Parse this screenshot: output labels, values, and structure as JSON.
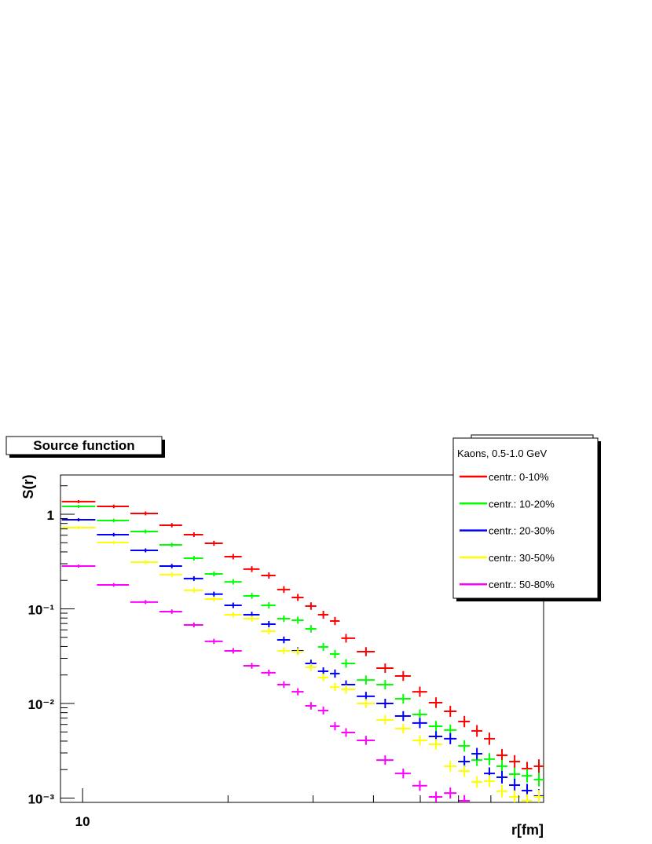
{
  "chart_data": {
    "type": "scatter",
    "title": "Source function",
    "xlabel": "r[fm]",
    "ylabel": "S(r)",
    "legend_title": "Kaons, 0.5-1.0 GeV",
    "legend_position": "top-right",
    "xscale": "log",
    "yscale": "log",
    "xlim": [
      9,
      90
    ],
    "ylim": [
      0.0009,
      2.6
    ],
    "xticks": [
      10
    ],
    "x_minor_ticks": [
      20,
      30,
      40,
      50,
      60,
      70,
      80,
      90
    ],
    "yticks": [
      1,
      {
        "value": 0.1,
        "label": "10⁻¹"
      },
      {
        "value": 0.01,
        "label": "10⁻²"
      },
      {
        "value": 0.001,
        "label": "10⁻³"
      }
    ],
    "y_minor_ticks": [
      0.002,
      0.003,
      0.004,
      0.005,
      0.006,
      0.007,
      0.008,
      0.009,
      0.02,
      0.03,
      0.04,
      0.05,
      0.06,
      0.07,
      0.08,
      0.09,
      0.2,
      0.3,
      0.4,
      0.5,
      0.6,
      0.7,
      0.8,
      0.9,
      2
    ],
    "x": [
      9.81,
      11.6,
      13.5,
      15.3,
      17.0,
      18.7,
      20.5,
      22.4,
      24.3,
      26.1,
      27.9,
      29.7,
      31.5,
      33.3,
      35.1,
      38.6,
      42.3,
      46.1,
      49.9,
      53.9,
      57.7,
      61.7,
      65.5,
      69.5,
      73.8,
      78.4,
      83.2,
      88.0
    ],
    "series": [
      {
        "name": "centr.: 0-10%",
        "color": "#ff0000",
        "values": [
          1.36,
          1.21,
          1.02,
          0.765,
          0.608,
          0.493,
          0.356,
          0.263,
          0.225,
          0.16,
          0.132,
          0.107,
          0.0867,
          0.0744,
          0.0489,
          0.0353,
          0.0236,
          0.0195,
          0.0133,
          0.0102,
          0.00826,
          0.00644,
          0.00513,
          0.00424,
          0.00283,
          0.00243,
          0.00205,
          0.00217
        ]
      },
      {
        "name": "centr.: 10-20%",
        "color": "#00ff00",
        "values": [
          1.21,
          0.859,
          0.657,
          0.475,
          0.343,
          0.234,
          0.193,
          0.137,
          0.109,
          0.0787,
          0.0758,
          0.0614,
          0.0396,
          0.0333,
          0.0265,
          0.0177,
          0.0158,
          0.0112,
          0.00766,
          0.00575,
          0.00523,
          0.00356,
          0.00252,
          0.00258,
          0.00217,
          0.00179,
          0.00172,
          0.00157
        ]
      },
      {
        "name": "centr.: 20-30%",
        "color": "#0000ff",
        "values": [
          0.875,
          0.608,
          0.415,
          0.283,
          0.209,
          0.143,
          0.109,
          0.0867,
          0.0689,
          0.047,
          0.036,
          0.0265,
          0.0219,
          0.0207,
          0.0158,
          0.0119,
          0.01,
          0.00736,
          0.00621,
          0.00448,
          0.00424,
          0.00243,
          0.00294,
          0.00182,
          0.00166,
          0.00137,
          0.0012,
          0.00105
        ]
      },
      {
        "name": "centr.: 30-50%",
        "color": "#ffff00",
        "values": [
          0.722,
          0.503,
          0.312,
          0.23,
          0.157,
          0.127,
          0.0867,
          0.0787,
          0.058,
          0.036,
          0.0353,
          0.0241,
          0.0188,
          0.0149,
          0.0141,
          0.01,
          0.0067,
          0.00542,
          0.00407,
          0.0037,
          0.00217,
          0.00193,
          0.00148,
          0.00151,
          0.00118,
          0.00103,
          0.000935,
          0.00103
        ]
      },
      {
        "name": "centr.: 50-80%",
        "color": "#ff00ff",
        "values": [
          0.283,
          0.179,
          0.118,
          0.0935,
          0.0676,
          0.0453,
          0.036,
          0.025,
          0.0211,
          0.0158,
          0.0133,
          0.00944,
          0.00841,
          0.00575,
          0.00493,
          0.00407,
          0.00252,
          0.00182,
          0.00135,
          0.00103,
          0.00113,
          0.000935,
          null,
          null,
          null,
          null,
          null,
          null
        ]
      }
    ]
  }
}
